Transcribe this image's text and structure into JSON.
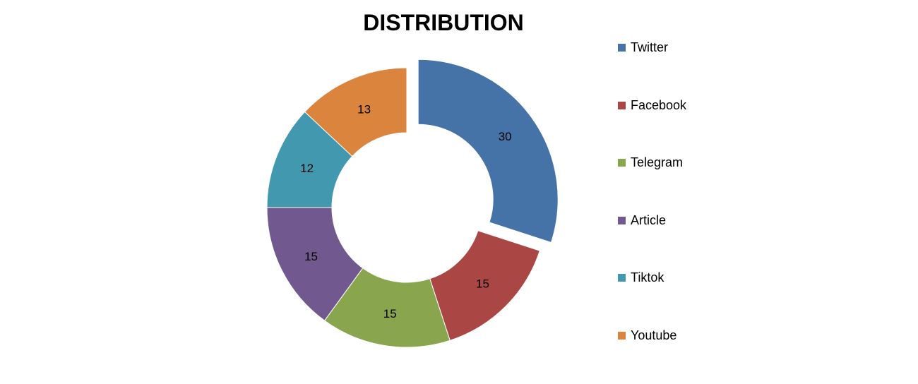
{
  "chart_data": {
    "type": "pie",
    "title": "DISTRIBUTION",
    "donut": true,
    "exploded": [
      "Twitter"
    ],
    "legend_position": "right",
    "series": [
      {
        "name": "Twitter",
        "value": 30,
        "color": "#4572A7"
      },
      {
        "name": "Facebook",
        "value": 15,
        "color": "#AA4643"
      },
      {
        "name": "Telegram",
        "value": 15,
        "color": "#89A54E"
      },
      {
        "name": "Article",
        "value": 15,
        "color": "#71588F"
      },
      {
        "name": "Tiktok",
        "value": 12,
        "color": "#4198AF"
      },
      {
        "name": "Youtube",
        "value": 13,
        "color": "#DB843D"
      }
    ]
  }
}
